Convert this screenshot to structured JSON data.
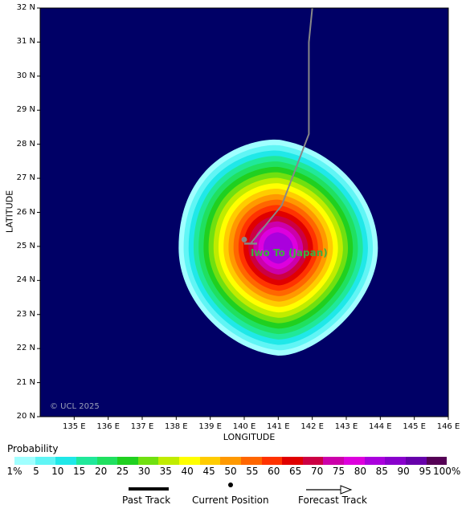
{
  "map": {
    "ylabel": "LATITUDE",
    "xlabel": "LONGITUDE",
    "lat_ticks": [
      "32 N",
      "31 N",
      "30 N",
      "29 N",
      "28 N",
      "27 N",
      "26 N",
      "25 N",
      "24 N",
      "23 N",
      "22 N",
      "21 N",
      "20 N"
    ],
    "lon_ticks": [
      "135 E",
      "136 E",
      "137 E",
      "138 E",
      "139 E",
      "140 E",
      "141 E",
      "142 E",
      "143 E",
      "144 E",
      "145 E",
      "146 E"
    ],
    "background_color": "#000066",
    "place_label": "Iwo To (Japan)",
    "copyright": "© UCL 2025"
  },
  "legend": {
    "title": "Probability",
    "labels": [
      "1%",
      "5",
      "10",
      "15",
      "20",
      "25",
      "30",
      "35",
      "40",
      "45",
      "50",
      "55",
      "60",
      "65",
      "70",
      "75",
      "80",
      "85",
      "90",
      "95",
      "100%"
    ],
    "colors": [
      "#a0ffff",
      "#60f5f5",
      "#20e8e8",
      "#20e89a",
      "#20e060",
      "#20d020",
      "#70e010",
      "#c0ec00",
      "#ffff00",
      "#ffcc00",
      "#ff9900",
      "#ff6600",
      "#ff3300",
      "#e00000",
      "#cc0044",
      "#cc00aa",
      "#dd00dd",
      "#aa00dd",
      "#8800cc",
      "#6600aa",
      "#550055"
    ]
  },
  "key": {
    "past_track": "Past Track",
    "current_position": "Current Position",
    "forecast_track": "Forecast Track"
  },
  "track": {
    "points_lonlat": [
      [
        142.0,
        32.0
      ],
      [
        141.9,
        31.0
      ],
      [
        141.9,
        28.3
      ],
      [
        141.1,
        26.2
      ],
      [
        140.2,
        25.1
      ]
    ],
    "current_position": [
      140.0,
      25.2
    ],
    "color": "#888888"
  }
}
